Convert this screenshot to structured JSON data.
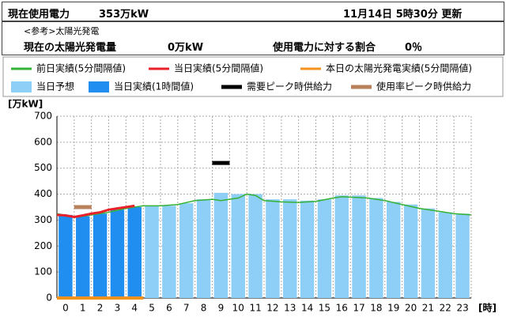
{
  "header": {
    "usage_label": "現在使用電力",
    "usage_value": "353万kW",
    "updated": "11月14日 5時30分 更新",
    "reference": "<参考>太陽光発電",
    "solar_label": "現在の太陽光発電量",
    "solar_value": "0万kW",
    "ratio_label": "使用電力に対する割合",
    "ratio_value": "0％"
  },
  "chart_data": {
    "type": "bar",
    "y_label": "[万kW]",
    "x_label": "[時]",
    "categories": [
      "0",
      "1",
      "2",
      "3",
      "4",
      "5",
      "6",
      "7",
      "8",
      "9",
      "10",
      "11",
      "12",
      "13",
      "14",
      "15",
      "16",
      "17",
      "18",
      "19",
      "20",
      "21",
      "22",
      "23"
    ],
    "ylim": [
      0,
      700
    ],
    "yticks": [
      0,
      100,
      200,
      300,
      400,
      500,
      600,
      700
    ],
    "xlim": [
      0,
      24
    ],
    "grid": true,
    "line_series": [
      {
        "name": "前日実績(5分間隔値)",
        "color": "#33b233",
        "x": [
          0,
          0.5,
          1,
          1.5,
          2,
          3,
          4,
          5,
          6,
          7,
          8,
          9,
          9.5,
          10.5,
          11,
          11.5,
          12,
          13,
          14,
          15,
          16,
          16.5,
          18,
          19,
          20,
          21,
          22,
          23,
          24
        ],
        "values": [
          325,
          318,
          310,
          315,
          320,
          330,
          345,
          355,
          355,
          360,
          375,
          380,
          375,
          385,
          400,
          395,
          375,
          370,
          368,
          372,
          385,
          390,
          385,
          375,
          360,
          345,
          335,
          325,
          320
        ]
      },
      {
        "name": "当日実績(5分間隔値)",
        "color": "#e8202a",
        "x": [
          0,
          0.5,
          1,
          1.5,
          2,
          2.5,
          3,
          3.5,
          4,
          4.5
        ],
        "values": [
          320,
          318,
          312,
          318,
          325,
          330,
          340,
          345,
          350,
          355
        ]
      },
      {
        "name": "本日の太陽光発電実績(5分間隔値)",
        "color": "#f5921e",
        "x": [
          0,
          5
        ],
        "values": [
          0,
          0
        ]
      }
    ],
    "bar_series": [
      {
        "name": "当日予想",
        "color": "#8ecff7",
        "values": [
          null,
          null,
          null,
          null,
          null,
          355,
          355,
          365,
          380,
          405,
          400,
          400,
          380,
          380,
          375,
          380,
          395,
          395,
          385,
          370,
          360,
          345,
          330,
          325
        ]
      },
      {
        "name": "当日実績(1時間値)",
        "color": "#1f8ef0",
        "values": [
          320,
          315,
          325,
          340,
          350,
          null,
          null,
          null,
          null,
          null,
          null,
          null,
          null,
          null,
          null,
          null,
          null,
          null,
          null,
          null,
          null,
          null,
          null,
          null
        ]
      }
    ],
    "peak_series": [
      {
        "name": "需要ピーク時供給力",
        "color": "#000000",
        "values": [
          null,
          null,
          null,
          null,
          null,
          null,
          null,
          null,
          null,
          520,
          null,
          null,
          null,
          null,
          null,
          null,
          null,
          null,
          null,
          null,
          null,
          null,
          null,
          null
        ]
      },
      {
        "name": "使用率ピーク時供給力",
        "color": "#b9805c",
        "values": [
          null,
          350,
          null,
          null,
          null,
          null,
          null,
          null,
          null,
          null,
          null,
          null,
          null,
          null,
          null,
          null,
          null,
          null,
          null,
          null,
          null,
          null,
          null,
          null
        ]
      }
    ]
  }
}
